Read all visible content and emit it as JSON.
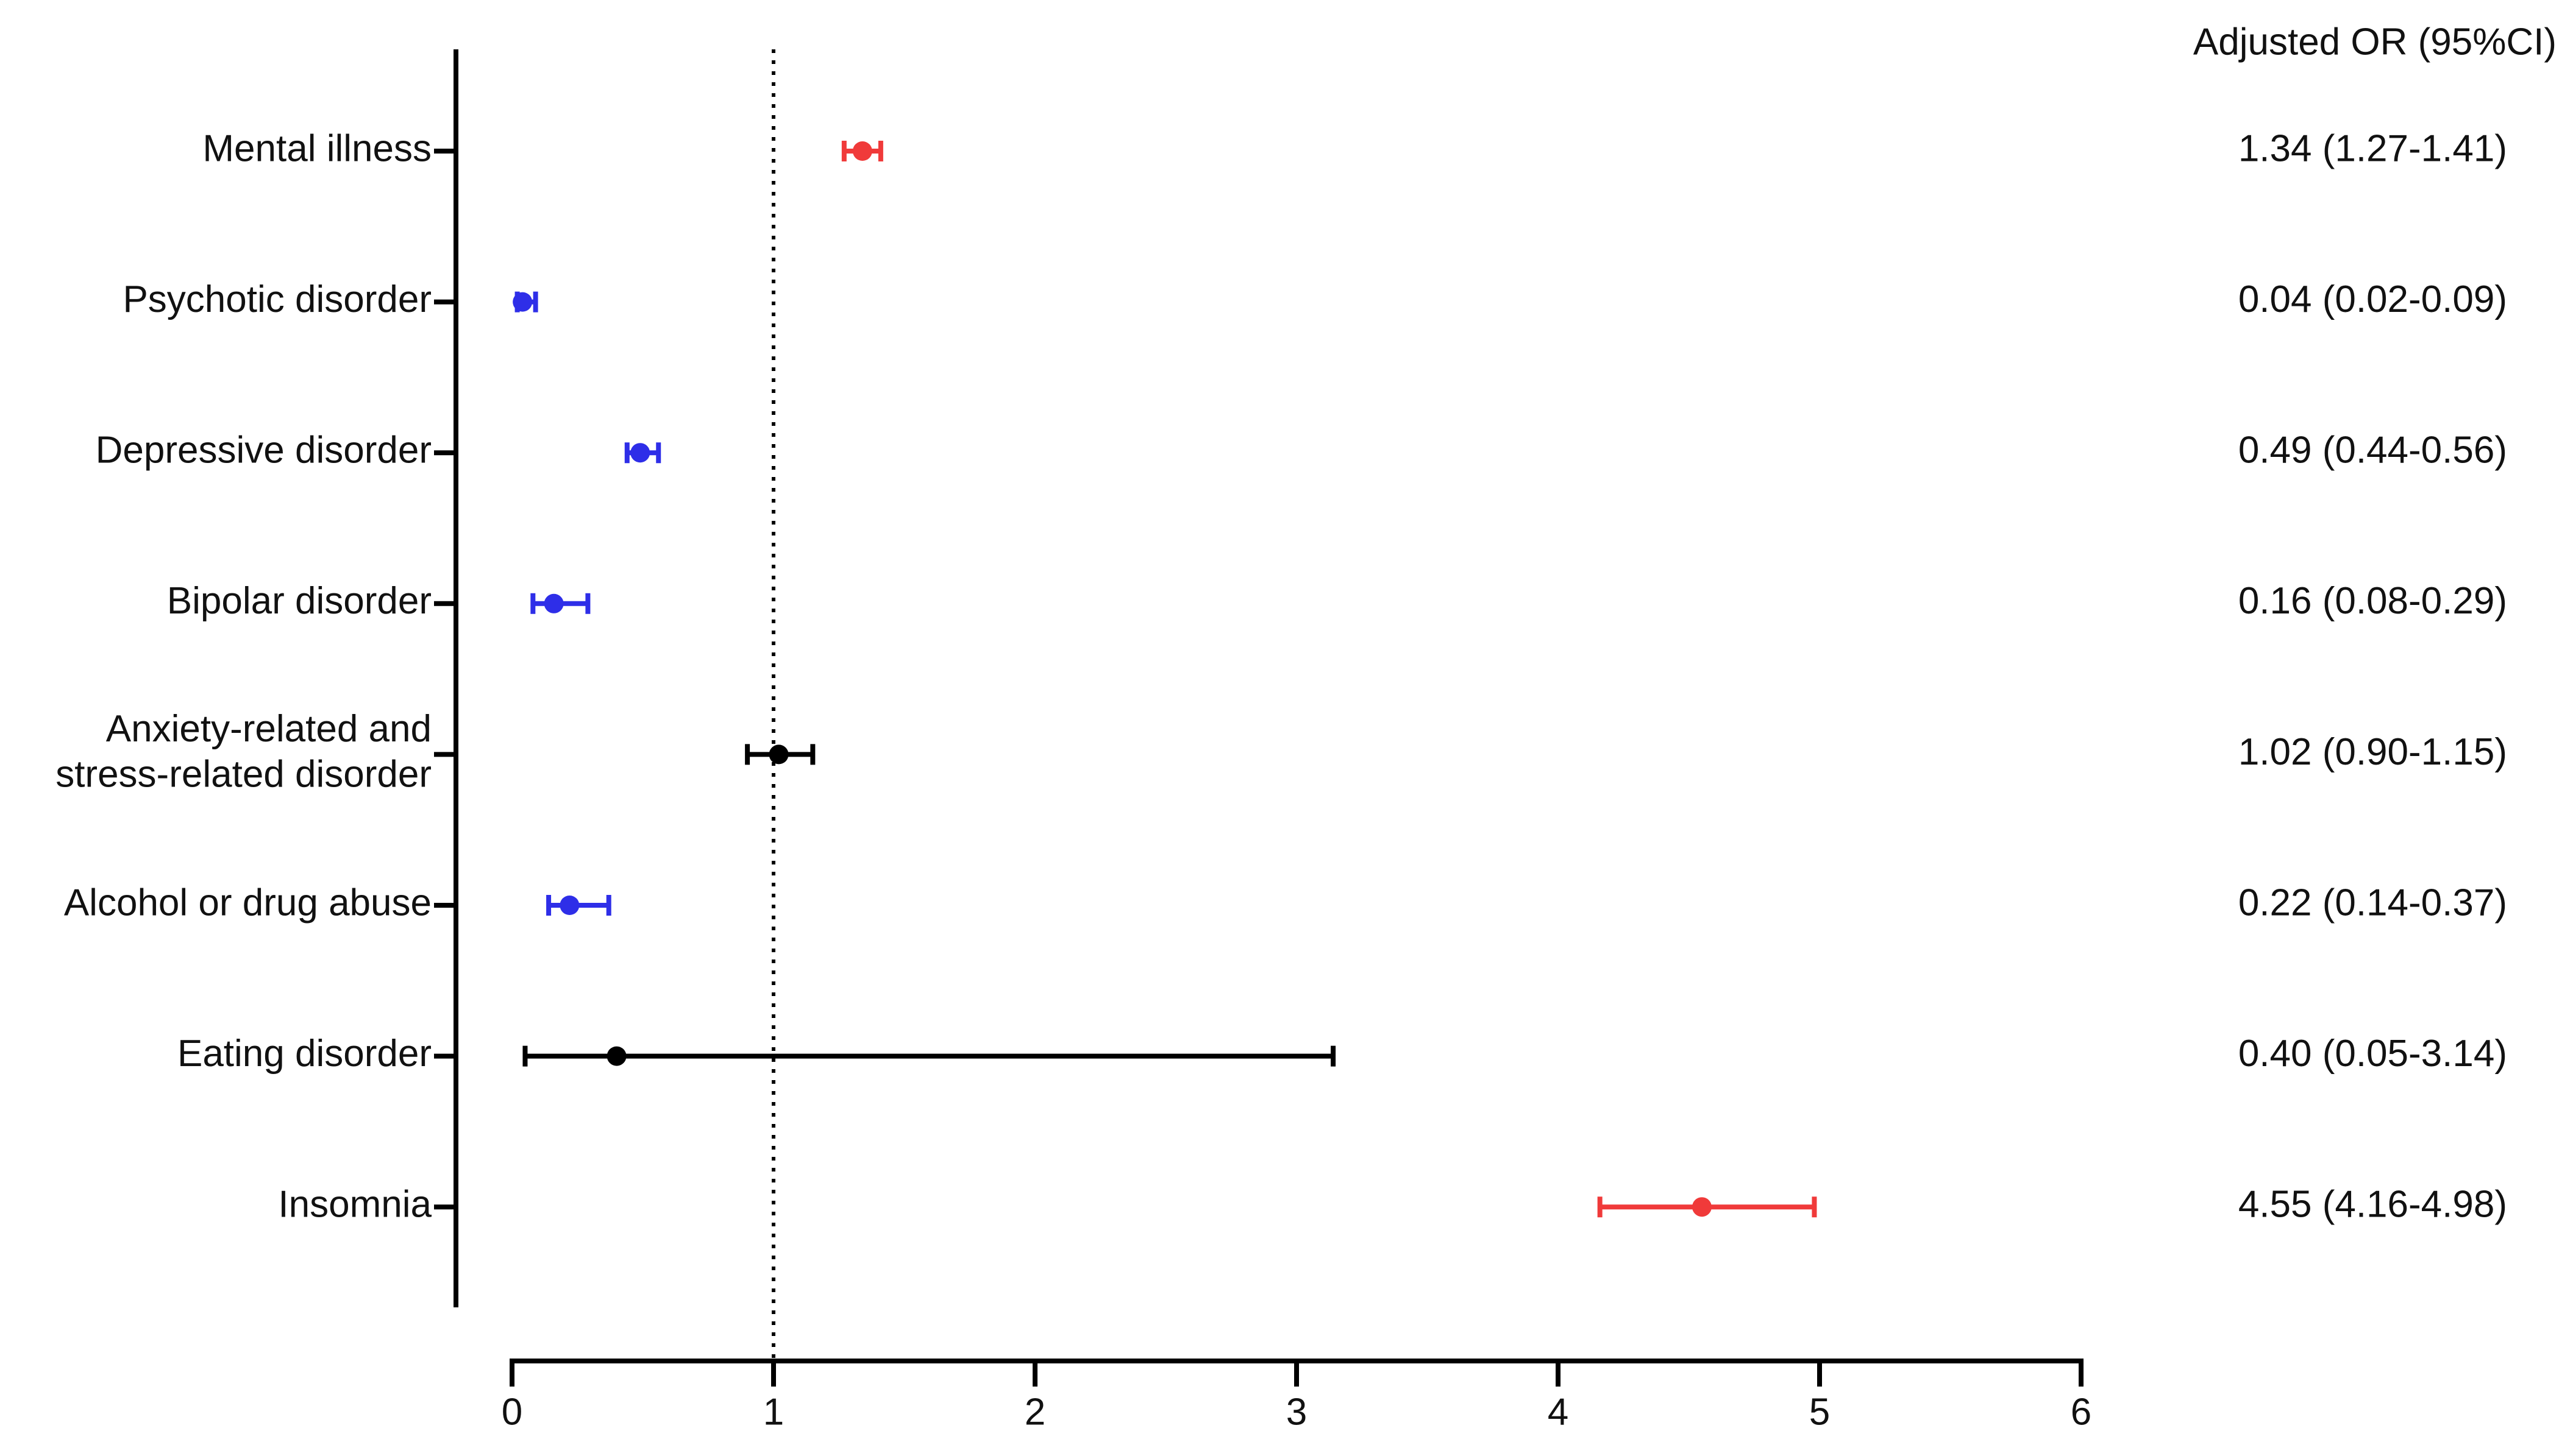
{
  "chart_data": {
    "type": "forest",
    "value_label_header": "Adjusted OR (95%CI)",
    "categories": [
      "Mental illness",
      "Psychotic disorder",
      "Depressive disorder",
      "Bipolar disorder",
      "Anxiety-related and\nstress-related disorder",
      "Alcohol or drug abuse",
      "Eating disorder",
      "Insomnia"
    ],
    "values": [
      1.34,
      0.04,
      0.49,
      0.16,
      1.02,
      0.22,
      0.4,
      4.55
    ],
    "lower": [
      1.27,
      0.02,
      0.44,
      0.08,
      0.9,
      0.14,
      0.05,
      4.16
    ],
    "upper": [
      1.41,
      0.09,
      0.56,
      0.29,
      1.15,
      0.37,
      3.14,
      4.98
    ],
    "value_labels": [
      "1.34 (1.27-1.41)",
      "0.04 (0.02-0.09)",
      "0.49 (0.44-0.56)",
      "0.16 (0.08-0.29)",
      "1.02 (0.90-1.15)",
      "0.22 (0.14-0.37)",
      "0.40 (0.05-3.14)",
      "4.55 (4.16-4.98)"
    ],
    "colors": [
      "#f03a3a",
      "#2e2ee8",
      "#2e2ee8",
      "#2e2ee8",
      "#000000",
      "#2e2ee8",
      "#000000",
      "#f03a3a"
    ],
    "reference_line": 1,
    "xlim": [
      0,
      6
    ],
    "xticks": [
      0,
      1,
      2,
      3,
      4,
      5,
      6
    ]
  }
}
